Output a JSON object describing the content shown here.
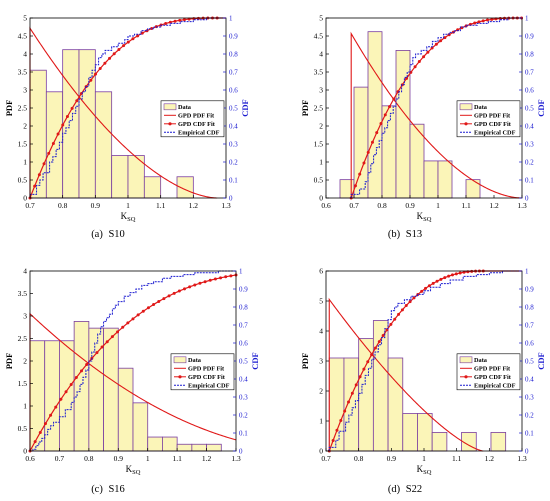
{
  "figure": {
    "panels": [
      {
        "label_prefix": "(a)",
        "label_name": "S10"
      },
      {
        "label_prefix": "(b)",
        "label_name": "S13"
      },
      {
        "label_prefix": "(c)",
        "label_name": "S16"
      },
      {
        "label_prefix": "(d)",
        "label_name": "S22"
      }
    ]
  },
  "colors": {
    "bar_fill": "#fbf5b8",
    "bar_edge": "#7a3ea0",
    "gpd_line": "#e01818",
    "empirical": "#1a1ad0",
    "cdf_axis": "#1a1ad0",
    "axis": "#000000"
  },
  "chart_data": [
    {
      "type": "bar",
      "title": "",
      "xlabel_main": "K",
      "xlabel_sub": "SQ",
      "ylabel_left": "PDF",
      "ylabel_right": "CDF",
      "xlim": [
        0.7,
        1.3
      ],
      "ylim_left": [
        0,
        5
      ],
      "ylim_right": [
        0,
        1
      ],
      "xticks": [
        0.7,
        0.8,
        0.9,
        1,
        1.1,
        1.2,
        1.3
      ],
      "xtick_labels": [
        "0.7",
        "0.8",
        "0.9",
        "1",
        "1.1",
        "1.2",
        "1.3"
      ],
      "yticks_left": [
        0,
        0.5,
        1,
        1.5,
        2,
        2.5,
        3,
        3.5,
        4,
        4.5,
        5
      ],
      "ytick_labels_left": [
        "0",
        "0.5",
        "1",
        "1.5",
        "2",
        "2.5",
        "3",
        "3.5",
        "4",
        "4.5",
        "5"
      ],
      "yticks_right": [
        0,
        0.1,
        0.2,
        0.3,
        0.4,
        0.5,
        0.6,
        0.7,
        0.8,
        0.9,
        1
      ],
      "ytick_labels_right": [
        "0",
        "0.1",
        "0.2",
        "0.3",
        "0.4",
        "0.5",
        "0.6",
        "0.7",
        "0.8",
        "0.9",
        "1"
      ],
      "legend": [
        "Data",
        "GPD PDF Fit",
        "GPD CDF Fit",
        "Empirical CDF"
      ],
      "legend_position": "right",
      "hist": {
        "edges": [
          0.7,
          0.75,
          0.8,
          0.85,
          0.9,
          0.95,
          1.0,
          1.05,
          1.1,
          1.15,
          1.2,
          1.25
        ],
        "values": [
          3.55,
          2.95,
          4.12,
          4.12,
          2.95,
          1.18,
          1.18,
          0.59,
          0,
          0.59,
          0,
          0.59
        ]
      },
      "gpd": {
        "mu": 0.7,
        "sigma": 0.212,
        "xi": -0.37,
        "pdf_peak": 4.72
      },
      "empirical_cdf": {
        "x": [
          0.7,
          0.72,
          0.73,
          0.74,
          0.76,
          0.77,
          0.78,
          0.79,
          0.8,
          0.81,
          0.82,
          0.83,
          0.84,
          0.85,
          0.86,
          0.87,
          0.88,
          0.89,
          0.9,
          0.91,
          0.92,
          0.93,
          0.95,
          0.97,
          0.99,
          1.0,
          1.02,
          1.04,
          1.06,
          1.08,
          1.1,
          1.13,
          1.16,
          1.2,
          1.24
        ],
        "y": [
          0.02,
          0.07,
          0.1,
          0.14,
          0.2,
          0.23,
          0.27,
          0.31,
          0.36,
          0.39,
          0.43,
          0.47,
          0.51,
          0.55,
          0.59,
          0.62,
          0.67,
          0.71,
          0.74,
          0.78,
          0.8,
          0.82,
          0.84,
          0.86,
          0.88,
          0.9,
          0.91,
          0.93,
          0.94,
          0.95,
          0.96,
          0.97,
          0.98,
          0.99,
          1.0
        ]
      }
    },
    {
      "type": "bar",
      "title": "",
      "xlabel_main": "K",
      "xlabel_sub": "SQ",
      "ylabel_left": "PDF",
      "ylabel_right": "CDF",
      "xlim": [
        0.6,
        1.3
      ],
      "ylim_left": [
        0,
        5
      ],
      "ylim_right": [
        0,
        1
      ],
      "xticks": [
        0.6,
        0.7,
        0.8,
        0.9,
        1,
        1.1,
        1.2,
        1.3
      ],
      "xtick_labels": [
        "0.6",
        "0.7",
        "0.8",
        "0.9",
        "1",
        "1.1",
        "1.2",
        "1.3"
      ],
      "yticks_left": [
        0,
        0.5,
        1,
        1.5,
        2,
        2.5,
        3,
        3.5,
        4,
        4.5,
        5
      ],
      "ytick_labels_left": [
        "0",
        "0.5",
        "1",
        "1.5",
        "2",
        "2.5",
        "3",
        "3.5",
        "4",
        "4.5",
        "5"
      ],
      "yticks_right": [
        0,
        0.1,
        0.2,
        0.3,
        0.4,
        0.5,
        0.6,
        0.7,
        0.8,
        0.9,
        1
      ],
      "ytick_labels_right": [
        "0",
        "0.1",
        "0.2",
        "0.3",
        "0.4",
        "0.5",
        "0.6",
        "0.7",
        "0.8",
        "0.9",
        "1"
      ],
      "legend": [
        "Data",
        "GPD PDF Fit",
        "GPD CDF Fit",
        "Empirical CDF"
      ],
      "legend_position": "right",
      "hist": {
        "edges": [
          0.65,
          0.7,
          0.75,
          0.8,
          0.85,
          0.9,
          0.95,
          1.0,
          1.05,
          1.1,
          1.15,
          1.2
        ],
        "values": [
          0.51,
          3.08,
          4.62,
          2.56,
          4.1,
          2.05,
          1.03,
          1.03,
          0,
          0.51,
          0,
          0.51
        ]
      },
      "gpd": {
        "mu": 0.69,
        "sigma": 0.219,
        "xi": -0.36,
        "pdf_peak": 4.56
      },
      "empirical_cdf": {
        "x": [
          0.69,
          0.72,
          0.74,
          0.75,
          0.76,
          0.77,
          0.78,
          0.79,
          0.8,
          0.81,
          0.82,
          0.83,
          0.84,
          0.85,
          0.86,
          0.87,
          0.88,
          0.89,
          0.9,
          0.91,
          0.92,
          0.94,
          0.96,
          0.98,
          1.0,
          1.02,
          1.04,
          1.06,
          1.08,
          1.1,
          1.14,
          1.18,
          1.22,
          1.25
        ],
        "y": [
          0.02,
          0.05,
          0.09,
          0.14,
          0.19,
          0.24,
          0.28,
          0.32,
          0.36,
          0.39,
          0.43,
          0.47,
          0.51,
          0.55,
          0.59,
          0.63,
          0.67,
          0.7,
          0.74,
          0.78,
          0.8,
          0.82,
          0.84,
          0.87,
          0.89,
          0.91,
          0.92,
          0.93,
          0.95,
          0.96,
          0.97,
          0.98,
          0.99,
          1.0
        ]
      }
    },
    {
      "type": "bar",
      "title": "",
      "xlabel_main": "K",
      "xlabel_sub": "SQ",
      "ylabel_left": "PDF",
      "ylabel_right": "CDF",
      "xlim": [
        0.6,
        1.3
      ],
      "ylim_left": [
        0,
        4
      ],
      "ylim_right": [
        0,
        1
      ],
      "xticks": [
        0.6,
        0.7,
        0.8,
        0.9,
        1,
        1.1,
        1.2,
        1.3
      ],
      "xtick_labels": [
        "0.6",
        "0.7",
        "0.8",
        "0.9",
        "1",
        "1.1",
        "1.2",
        "1.3"
      ],
      "yticks_left": [
        0,
        0.5,
        1,
        1.5,
        2,
        2.5,
        3,
        3.5,
        4
      ],
      "ytick_labels_left": [
        "0",
        "0.5",
        "1",
        "1.5",
        "2",
        "2.5",
        "3",
        "3.5",
        "4"
      ],
      "yticks_right": [
        0,
        0.1,
        0.2,
        0.3,
        0.4,
        0.5,
        0.6,
        0.7,
        0.8,
        0.9,
        1
      ],
      "ytick_labels_right": [
        "0",
        "0.1",
        "0.2",
        "0.3",
        "0.4",
        "0.5",
        "0.6",
        "0.7",
        "0.8",
        "0.9",
        "1"
      ],
      "legend": [
        "Data",
        "GPD PDF Fit",
        "GPD CDF Fit",
        "Empirical CDF"
      ],
      "legend_position": "right",
      "hist": {
        "edges": [
          0.6,
          0.65,
          0.7,
          0.75,
          0.8,
          0.85,
          0.9,
          0.95,
          1.0,
          1.05,
          1.1,
          1.15,
          1.2,
          1.25
        ],
        "values": [
          2.45,
          2.45,
          2.45,
          2.88,
          2.73,
          2.73,
          1.84,
          1.07,
          0.31,
          0.31,
          0.15,
          0.15,
          0.15
        ]
      },
      "gpd": {
        "mu": 0.6,
        "sigma": 0.328,
        "xi": -0.34,
        "pdf_peak": 3.05
      },
      "empirical_cdf": {
        "x": [
          0.61,
          0.62,
          0.63,
          0.64,
          0.65,
          0.66,
          0.67,
          0.68,
          0.7,
          0.72,
          0.74,
          0.75,
          0.76,
          0.77,
          0.78,
          0.79,
          0.8,
          0.81,
          0.82,
          0.83,
          0.84,
          0.85,
          0.86,
          0.87,
          0.88,
          0.89,
          0.9,
          0.92,
          0.94,
          0.96,
          0.98,
          1.0,
          1.02,
          1.05,
          1.08,
          1.12,
          1.16,
          1.2,
          1.24,
          1.27
        ],
        "y": [
          0.01,
          0.03,
          0.05,
          0.07,
          0.09,
          0.12,
          0.14,
          0.16,
          0.19,
          0.23,
          0.27,
          0.3,
          0.33,
          0.37,
          0.41,
          0.45,
          0.5,
          0.55,
          0.6,
          0.65,
          0.69,
          0.72,
          0.74,
          0.76,
          0.79,
          0.81,
          0.83,
          0.86,
          0.88,
          0.9,
          0.92,
          0.93,
          0.94,
          0.96,
          0.97,
          0.98,
          0.99,
          0.99,
          1.0,
          1.0
        ]
      }
    },
    {
      "type": "bar",
      "title": "",
      "xlabel_main": "K",
      "xlabel_sub": "SQ",
      "ylabel_left": "PDF",
      "ylabel_right": "CDF",
      "xlim": [
        0.7,
        1.3
      ],
      "ylim_left": [
        0,
        6
      ],
      "ylim_right": [
        0,
        1
      ],
      "xticks": [
        0.7,
        0.8,
        0.9,
        1,
        1.1,
        1.2,
        1.3
      ],
      "xtick_labels": [
        "0.7",
        "0.8",
        "0.9",
        "1",
        "1.1",
        "1.2",
        "1.3"
      ],
      "yticks_left": [
        0,
        1,
        2,
        3,
        4,
        5,
        6
      ],
      "ytick_labels_left": [
        "0",
        "1",
        "2",
        "3",
        "4",
        "5",
        "6"
      ],
      "yticks_right": [
        0,
        0.1,
        0.2,
        0.3,
        0.4,
        0.5,
        0.6,
        0.7,
        0.8,
        0.9,
        1
      ],
      "ytick_labels_right": [
        "0",
        "0.1",
        "0.2",
        "0.3",
        "0.4",
        "0.5",
        "0.6",
        "0.7",
        "0.8",
        "0.9",
        "1"
      ],
      "legend": [
        "Data",
        "GPD PDF Fit",
        "GPD CDF Fit",
        "Empirical CDF"
      ],
      "legend_position": "right",
      "hist": {
        "edges": [
          0.71,
          0.755,
          0.8,
          0.845,
          0.89,
          0.935,
          0.98,
          1.025,
          1.07,
          1.115,
          1.16,
          1.205,
          1.25
        ],
        "values": [
          3.1,
          3.1,
          3.75,
          4.35,
          3.1,
          1.25,
          1.25,
          0.62,
          0,
          0.62,
          0,
          0.62
        ]
      },
      "gpd": {
        "mu": 0.71,
        "sigma": 0.198,
        "xi": -0.42,
        "pdf_peak": 5.05
      },
      "empirical_cdf": {
        "x": [
          0.71,
          0.73,
          0.74,
          0.76,
          0.77,
          0.78,
          0.79,
          0.8,
          0.81,
          0.82,
          0.83,
          0.84,
          0.85,
          0.86,
          0.87,
          0.88,
          0.89,
          0.9,
          0.91,
          0.92,
          0.94,
          0.96,
          0.98,
          1.0,
          1.02,
          1.05,
          1.08,
          1.12,
          1.16,
          1.2,
          1.24
        ],
        "y": [
          0.02,
          0.06,
          0.11,
          0.16,
          0.2,
          0.24,
          0.28,
          0.32,
          0.37,
          0.42,
          0.46,
          0.51,
          0.55,
          0.59,
          0.63,
          0.68,
          0.73,
          0.78,
          0.8,
          0.82,
          0.84,
          0.86,
          0.87,
          0.89,
          0.91,
          0.93,
          0.95,
          0.97,
          0.98,
          0.99,
          1.0
        ]
      }
    }
  ]
}
